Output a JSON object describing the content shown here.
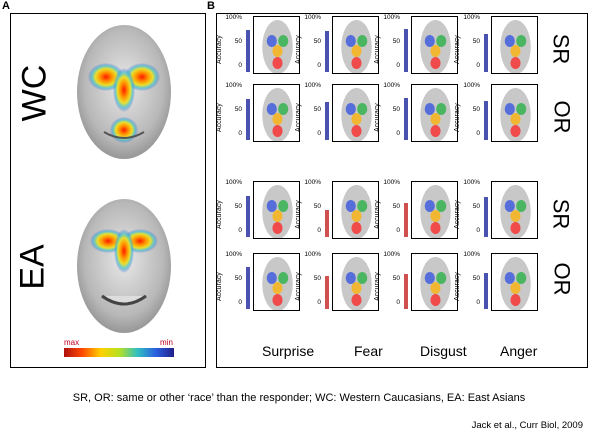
{
  "panels": {
    "a_letter": "A",
    "b_letter": "B"
  },
  "panel_a": {
    "groups": [
      {
        "label": "WC"
      },
      {
        "label": "EA"
      }
    ],
    "colorbar": {
      "max_label": "max",
      "min_label": "min"
    }
  },
  "panel_b": {
    "y_axis_label": "Accuracy",
    "y_ticks": [
      "100%",
      "50",
      "0"
    ],
    "row_labels": [
      "SR",
      "OR",
      "SR",
      "OR"
    ],
    "emotions": [
      "Surprise",
      "Fear",
      "Disgust",
      "Anger"
    ],
    "bar_colors": {
      "blue": "#4a52b0",
      "red": "#d05050"
    },
    "accuracy": [
      [
        {
          "value": 0.88,
          "color": "blue"
        },
        {
          "value": 0.86,
          "color": "blue"
        },
        {
          "value": 0.9,
          "color": "blue"
        },
        {
          "value": 0.8,
          "color": "blue"
        }
      ],
      [
        {
          "value": 0.86,
          "color": "blue"
        },
        {
          "value": 0.8,
          "color": "blue"
        },
        {
          "value": 0.88,
          "color": "blue"
        },
        {
          "value": 0.82,
          "color": "blue"
        }
      ],
      [
        {
          "value": 0.86,
          "color": "blue"
        },
        {
          "value": 0.56,
          "color": "red"
        },
        {
          "value": 0.7,
          "color": "red"
        },
        {
          "value": 0.84,
          "color": "blue"
        }
      ],
      [
        {
          "value": 0.88,
          "color": "blue"
        },
        {
          "value": 0.68,
          "color": "red"
        },
        {
          "value": 0.72,
          "color": "red"
        },
        {
          "value": 0.74,
          "color": "blue"
        }
      ]
    ]
  },
  "caption": "SR, OR: same or other ‘race’ than the responder; WC: Western Caucasians, EA: East Asians",
  "citation": "Jack et al., Curr Biol, 2009"
}
